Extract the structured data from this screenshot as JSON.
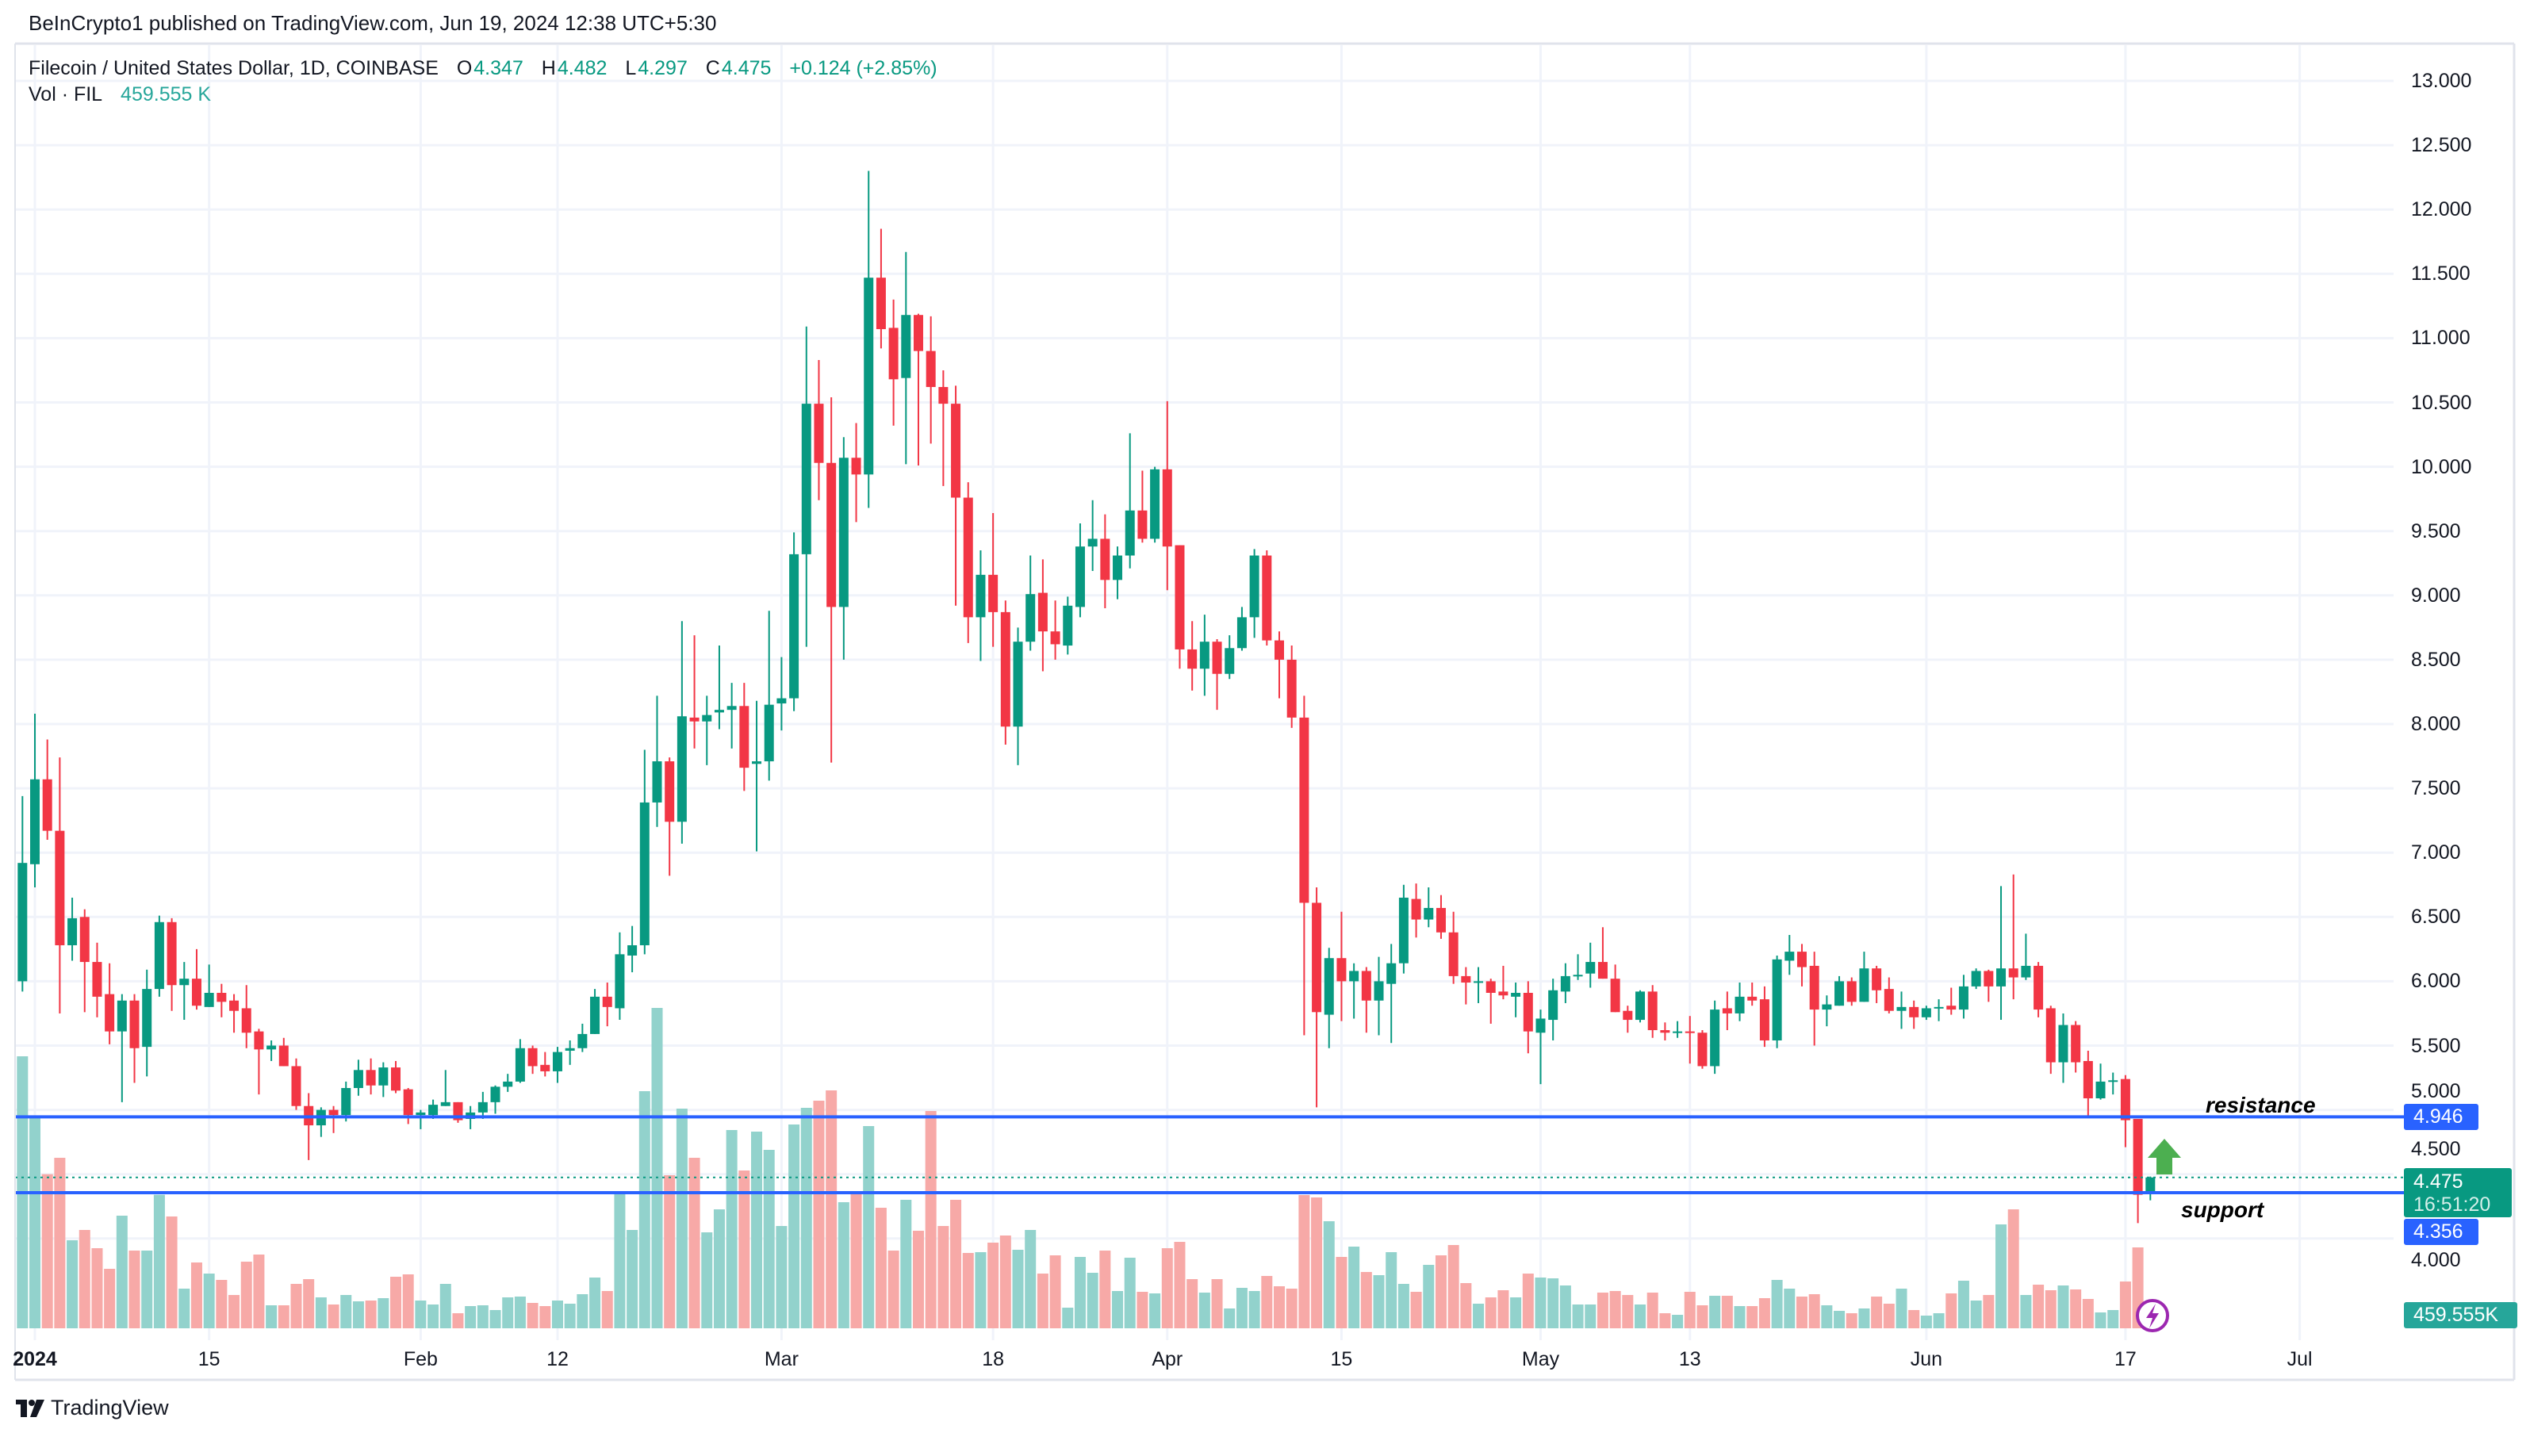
{
  "header": {
    "published": "BeInCrypto1 published on TradingView.com, Jun 19, 2024 12:38 UTC+5:30"
  },
  "legend": {
    "symbol": "Filecoin / United States Dollar, 1D, COINBASE",
    "o_label": "O",
    "o": "4.347",
    "h_label": "H",
    "h": "4.482",
    "l_label": "L",
    "l": "4.297",
    "c_label": "C",
    "c": "4.475",
    "change": "+0.124 (+2.85%)",
    "vol_label": "Vol · FIL",
    "vol": "459.555 K"
  },
  "annotations": {
    "resistance": "resistance",
    "support": "support"
  },
  "price_scale": {
    "resistance_value": "4.946",
    "support_value": "4.356",
    "current_value": "4.475",
    "countdown": "16:51:20",
    "volume_value": "459.555K"
  },
  "footer": {
    "logo": "TradingView"
  },
  "colors": {
    "up": "#089981",
    "down": "#f23645",
    "volume_up": "#92d2cc",
    "volume_down": "#f7a9a7",
    "level_line": "#2962ff",
    "arrow": "#4caf50",
    "alert": "#9c27b0",
    "grid": "#f0f3fa",
    "volume_label": "#26a69a"
  },
  "chart_data": {
    "type": "candlestick",
    "title": "Filecoin / United States Dollar, 1D, COINBASE",
    "start_date": "2023-12-31",
    "ylim": [
      4.0,
      13.0
    ],
    "y_ticks": [
      "13.000",
      "12.500",
      "12.000",
      "11.500",
      "11.000",
      "10.500",
      "10.000",
      "9.500",
      "9.000",
      "8.500",
      "8.000",
      "7.500",
      "7.000",
      "6.500",
      "6.000",
      "5.500",
      "5.000",
      "4.500",
      "4.000"
    ],
    "x_ticks": [
      {
        "day": 0,
        "label": "2024",
        "bold": true
      },
      {
        "day": 14,
        "label": "15"
      },
      {
        "day": 31,
        "label": "Feb"
      },
      {
        "day": 42,
        "label": "12"
      },
      {
        "day": 60,
        "label": "Mar"
      },
      {
        "day": 77,
        "label": "18"
      },
      {
        "day": 91,
        "label": "Apr"
      },
      {
        "day": 105,
        "label": "15"
      },
      {
        "day": 121,
        "label": "May"
      },
      {
        "day": 133,
        "label": "13"
      },
      {
        "day": 152,
        "label": "Jun"
      },
      {
        "day": 168,
        "label": "17"
      },
      {
        "day": 182,
        "label": "Jul"
      }
    ],
    "resistance": 4.946,
    "support": 4.356,
    "last_price": 4.475,
    "columns": [
      "open",
      "high",
      "low",
      "close",
      "volume_k"
    ],
    "ohlcv": [
      [
        6.0,
        7.44,
        5.92,
        6.92,
        7203
      ],
      [
        6.91,
        8.08,
        6.73,
        7.57,
        5600
      ],
      [
        7.57,
        7.88,
        7.1,
        7.17,
        4081
      ],
      [
        7.17,
        7.74,
        5.75,
        6.28,
        4515
      ],
      [
        6.28,
        6.65,
        6.16,
        6.49,
        2331
      ],
      [
        6.5,
        6.56,
        5.76,
        6.15,
        2604
      ],
      [
        6.15,
        6.3,
        5.72,
        5.88,
        2121
      ],
      [
        5.9,
        6.14,
        5.51,
        5.61,
        1575
      ],
      [
        5.61,
        5.9,
        5.06,
        5.85,
        2982
      ],
      [
        5.85,
        5.9,
        5.21,
        5.48,
        2058
      ],
      [
        5.49,
        6.09,
        5.26,
        5.94,
        2058
      ],
      [
        5.94,
        6.51,
        5.88,
        6.46,
        3535
      ],
      [
        6.46,
        6.49,
        5.77,
        5.97,
        2961
      ],
      [
        5.97,
        6.15,
        5.7,
        6.02,
        1050
      ],
      [
        6.02,
        6.25,
        5.78,
        5.81,
        1743
      ],
      [
        5.8,
        6.13,
        5.8,
        5.91,
        1449
      ],
      [
        5.91,
        5.98,
        5.72,
        5.84,
        1281
      ],
      [
        5.85,
        5.9,
        5.6,
        5.77,
        882
      ],
      [
        5.79,
        5.97,
        5.48,
        5.6,
        1764
      ],
      [
        5.61,
        5.63,
        5.12,
        5.47,
        1953
      ],
      [
        5.47,
        5.54,
        5.38,
        5.5,
        609
      ],
      [
        5.5,
        5.56,
        5.34,
        5.34,
        609
      ],
      [
        5.34,
        5.4,
        5.0,
        5.03,
        1176
      ],
      [
        5.03,
        5.13,
        4.61,
        4.88,
        1302
      ],
      [
        4.88,
        5.02,
        4.79,
        5.0,
        819
      ],
      [
        5.0,
        5.03,
        4.82,
        4.96,
        630
      ],
      [
        4.96,
        5.22,
        4.91,
        5.17,
        882
      ],
      [
        5.17,
        5.39,
        5.11,
        5.31,
        714
      ],
      [
        5.31,
        5.4,
        5.12,
        5.19,
        735
      ],
      [
        5.19,
        5.37,
        5.1,
        5.33,
        798
      ],
      [
        5.33,
        5.38,
        5.13,
        5.15,
        1365
      ],
      [
        5.16,
        5.17,
        4.89,
        4.96,
        1428
      ],
      [
        4.96,
        5.0,
        4.85,
        4.98,
        735
      ],
      [
        4.96,
        5.08,
        4.93,
        5.04,
        630
      ],
      [
        5.03,
        5.31,
        5.03,
        5.06,
        1176
      ],
      [
        5.06,
        5.06,
        4.9,
        4.92,
        399
      ],
      [
        4.93,
        5.03,
        4.85,
        4.98,
        588
      ],
      [
        4.98,
        5.14,
        4.93,
        5.06,
        609
      ],
      [
        5.06,
        5.19,
        4.97,
        5.18,
        483
      ],
      [
        5.18,
        5.28,
        5.14,
        5.22,
        819
      ],
      [
        5.22,
        5.55,
        5.21,
        5.48,
        840
      ],
      [
        5.48,
        5.5,
        5.28,
        5.34,
        672
      ],
      [
        5.35,
        5.45,
        5.26,
        5.3,
        588
      ],
      [
        5.3,
        5.49,
        5.21,
        5.45,
        735
      ],
      [
        5.46,
        5.54,
        5.35,
        5.48,
        651
      ],
      [
        5.48,
        5.67,
        5.45,
        5.59,
        903
      ],
      [
        5.59,
        5.94,
        5.59,
        5.88,
        1344
      ],
      [
        5.88,
        5.99,
        5.65,
        5.8,
        987
      ],
      [
        5.79,
        6.38,
        5.7,
        6.21,
        3570
      ],
      [
        6.2,
        6.43,
        6.07,
        6.28,
        2604
      ],
      [
        6.28,
        7.8,
        6.21,
        7.39,
        6279
      ],
      [
        7.39,
        8.22,
        7.2,
        7.71,
        8484
      ],
      [
        7.71,
        7.74,
        6.82,
        7.24,
        4053
      ],
      [
        7.24,
        8.8,
        7.07,
        8.06,
        5817
      ],
      [
        8.05,
        8.69,
        7.81,
        8.02,
        4515
      ],
      [
        8.02,
        8.22,
        7.68,
        8.07,
        2541
      ],
      [
        8.09,
        8.61,
        7.96,
        8.11,
        3150
      ],
      [
        8.11,
        8.32,
        7.81,
        8.14,
        5250
      ],
      [
        8.14,
        8.32,
        7.48,
        7.66,
        4179
      ],
      [
        7.69,
        8.18,
        7.01,
        7.71,
        5208
      ],
      [
        7.71,
        8.88,
        7.56,
        8.15,
        4725
      ],
      [
        8.16,
        8.52,
        7.95,
        8.2,
        2709
      ],
      [
        8.2,
        9.49,
        8.1,
        9.32,
        5397
      ],
      [
        9.32,
        11.09,
        8.6,
        10.49,
        5838
      ],
      [
        10.49,
        10.83,
        9.74,
        10.03,
        6027
      ],
      [
        10.03,
        10.54,
        7.7,
        8.91,
        6300
      ],
      [
        8.91,
        10.23,
        8.5,
        10.07,
        3339
      ],
      [
        10.07,
        10.34,
        9.57,
        9.94,
        3633
      ],
      [
        9.94,
        12.3,
        9.68,
        11.47,
        5355
      ],
      [
        11.47,
        11.85,
        10.92,
        11.07,
        3192
      ],
      [
        11.08,
        11.3,
        10.32,
        10.68,
        2058
      ],
      [
        10.69,
        11.67,
        10.02,
        11.18,
        3402
      ],
      [
        11.18,
        11.19,
        10.01,
        10.9,
        2583
      ],
      [
        10.9,
        11.17,
        10.18,
        10.62,
        5754
      ],
      [
        10.62,
        10.75,
        9.85,
        10.49,
        2709
      ],
      [
        10.49,
        10.63,
        8.92,
        9.76,
        3402
      ],
      [
        9.76,
        9.88,
        8.63,
        8.83,
        1995
      ],
      [
        8.83,
        9.35,
        8.49,
        9.16,
        2016
      ],
      [
        9.16,
        9.64,
        8.6,
        8.87,
        2268
      ],
      [
        8.87,
        8.96,
        7.84,
        7.98,
        2457
      ],
      [
        7.98,
        8.75,
        7.68,
        8.64,
        2079
      ],
      [
        8.64,
        9.31,
        8.57,
        9.01,
        2604
      ],
      [
        9.02,
        9.28,
        8.41,
        8.72,
        1449
      ],
      [
        8.72,
        8.96,
        8.5,
        8.62,
        1932
      ],
      [
        8.61,
        8.99,
        8.54,
        8.92,
        546
      ],
      [
        8.91,
        9.56,
        8.83,
        9.38,
        1890
      ],
      [
        9.38,
        9.74,
        9.19,
        9.44,
        1470
      ],
      [
        9.44,
        9.63,
        8.9,
        9.12,
        2058
      ],
      [
        9.12,
        9.38,
        8.97,
        9.31,
        987
      ],
      [
        9.31,
        10.26,
        9.21,
        9.66,
        1869
      ],
      [
        9.66,
        9.97,
        9.41,
        9.44,
        966
      ],
      [
        9.44,
        10.0,
        9.41,
        9.98,
        924
      ],
      [
        9.98,
        10.51,
        9.04,
        9.38,
        2121
      ],
      [
        9.39,
        9.39,
        8.43,
        8.58,
        2289
      ],
      [
        8.58,
        8.8,
        8.26,
        8.43,
        1302
      ],
      [
        8.43,
        8.85,
        8.22,
        8.64,
        945
      ],
      [
        8.64,
        8.66,
        8.11,
        8.39,
        1302
      ],
      [
        8.39,
        8.69,
        8.35,
        8.59,
        525
      ],
      [
        8.59,
        8.91,
        8.57,
        8.83,
        1071
      ],
      [
        8.83,
        9.36,
        8.67,
        9.31,
        987
      ],
      [
        9.31,
        9.35,
        8.61,
        8.65,
        1386
      ],
      [
        8.65,
        8.72,
        8.2,
        8.5,
        1113
      ],
      [
        8.5,
        8.61,
        7.97,
        8.05,
        1050
      ],
      [
        8.05,
        8.22,
        5.58,
        6.61,
        3528
      ],
      [
        6.61,
        6.73,
        5.02,
        5.76,
        3465
      ],
      [
        5.74,
        6.26,
        5.48,
        6.18,
        2835
      ],
      [
        6.18,
        6.54,
        5.69,
        6.0,
        1890
      ],
      [
        6.0,
        6.14,
        5.71,
        6.08,
        2163
      ],
      [
        6.08,
        6.11,
        5.6,
        5.85,
        1491
      ],
      [
        5.85,
        6.19,
        5.58,
        6.0,
        1407
      ],
      [
        5.98,
        6.29,
        5.52,
        6.14,
        2016
      ],
      [
        6.14,
        6.75,
        6.06,
        6.65,
        1176
      ],
      [
        6.64,
        6.76,
        6.34,
        6.48,
        966
      ],
      [
        6.48,
        6.73,
        6.42,
        6.57,
        1680
      ],
      [
        6.57,
        6.67,
        6.33,
        6.38,
        1932
      ],
      [
        6.38,
        6.54,
        5.98,
        6.04,
        2205
      ],
      [
        6.04,
        6.11,
        5.82,
        5.99,
        1197
      ],
      [
        5.99,
        6.11,
        5.83,
        6.0,
        651
      ],
      [
        6.0,
        6.02,
        5.67,
        5.91,
        819
      ],
      [
        5.92,
        6.12,
        5.86,
        5.89,
        1008
      ],
      [
        5.88,
        5.99,
        5.72,
        5.91,
        819
      ],
      [
        5.91,
        6.0,
        5.44,
        5.61,
        1449
      ],
      [
        5.6,
        5.78,
        5.2,
        5.71,
        1344
      ],
      [
        5.7,
        6.02,
        5.54,
        5.93,
        1323
      ],
      [
        5.92,
        6.14,
        5.83,
        6.04,
        1134
      ],
      [
        6.04,
        6.21,
        6.01,
        6.05,
        630
      ],
      [
        6.06,
        6.3,
        5.95,
        6.15,
        630
      ],
      [
        6.15,
        6.42,
        6.02,
        6.02,
        945
      ],
      [
        6.02,
        6.13,
        5.76,
        5.76,
        987
      ],
      [
        5.77,
        5.81,
        5.6,
        5.7,
        882
      ],
      [
        5.7,
        5.93,
        5.68,
        5.92,
        630
      ],
      [
        5.92,
        5.97,
        5.56,
        5.62,
        945
      ],
      [
        5.62,
        5.68,
        5.54,
        5.6,
        399
      ],
      [
        5.6,
        5.69,
        5.56,
        5.61,
        357
      ],
      [
        5.61,
        5.73,
        5.36,
        5.6,
        966
      ],
      [
        5.6,
        5.62,
        5.32,
        5.34,
        609
      ],
      [
        5.34,
        5.85,
        5.28,
        5.78,
        861
      ],
      [
        5.79,
        5.92,
        5.62,
        5.75,
        861
      ],
      [
        5.75,
        5.99,
        5.69,
        5.88,
        588
      ],
      [
        5.88,
        5.99,
        5.81,
        5.85,
        588
      ],
      [
        5.86,
        5.96,
        5.49,
        5.54,
        798
      ],
      [
        5.54,
        6.2,
        5.48,
        6.17,
        1281
      ],
      [
        6.16,
        6.36,
        6.05,
        6.23,
        1050
      ],
      [
        6.23,
        6.29,
        5.96,
        6.11,
        840
      ],
      [
        6.12,
        6.23,
        5.5,
        5.78,
        903
      ],
      [
        5.78,
        5.89,
        5.65,
        5.82,
        609
      ],
      [
        5.81,
        6.04,
        5.81,
        6.0,
        462
      ],
      [
        6.0,
        6.03,
        5.81,
        5.84,
        399
      ],
      [
        5.84,
        6.23,
        5.84,
        6.1,
        525
      ],
      [
        6.1,
        6.12,
        5.83,
        5.93,
        840
      ],
      [
        5.94,
        6.03,
        5.75,
        5.77,
        651
      ],
      [
        5.77,
        5.92,
        5.63,
        5.8,
        1050
      ],
      [
        5.8,
        5.85,
        5.63,
        5.72,
        483
      ],
      [
        5.72,
        5.81,
        5.7,
        5.79,
        336
      ],
      [
        5.79,
        5.86,
        5.69,
        5.8,
        399
      ],
      [
        5.81,
        5.95,
        5.74,
        5.78,
        924
      ],
      [
        5.78,
        6.05,
        5.71,
        5.96,
        1260
      ],
      [
        5.96,
        6.1,
        5.94,
        6.08,
        735
      ],
      [
        6.08,
        6.09,
        5.84,
        5.96,
        882
      ],
      [
        5.96,
        6.74,
        5.7,
        6.1,
        2751
      ],
      [
        6.1,
        6.83,
        5.86,
        6.03,
        3150
      ],
      [
        6.03,
        6.37,
        6.01,
        6.12,
        882
      ],
      [
        6.12,
        6.15,
        5.72,
        5.78,
        1155
      ],
      [
        5.79,
        5.81,
        5.28,
        5.37,
        1008
      ],
      [
        5.37,
        5.75,
        5.21,
        5.66,
        1134
      ],
      [
        5.66,
        5.69,
        5.29,
        5.37,
        1029
      ],
      [
        5.38,
        5.46,
        4.94,
        5.09,
        777
      ],
      [
        5.09,
        5.36,
        5.08,
        5.22,
        420
      ],
      [
        5.22,
        5.29,
        5.12,
        5.23,
        483
      ],
      [
        5.24,
        5.27,
        4.71,
        4.92,
        1239
      ],
      [
        4.93,
        4.93,
        4.12,
        4.34,
        2142
      ],
      [
        4.347,
        4.482,
        4.297,
        4.475,
        459.555
      ]
    ]
  }
}
